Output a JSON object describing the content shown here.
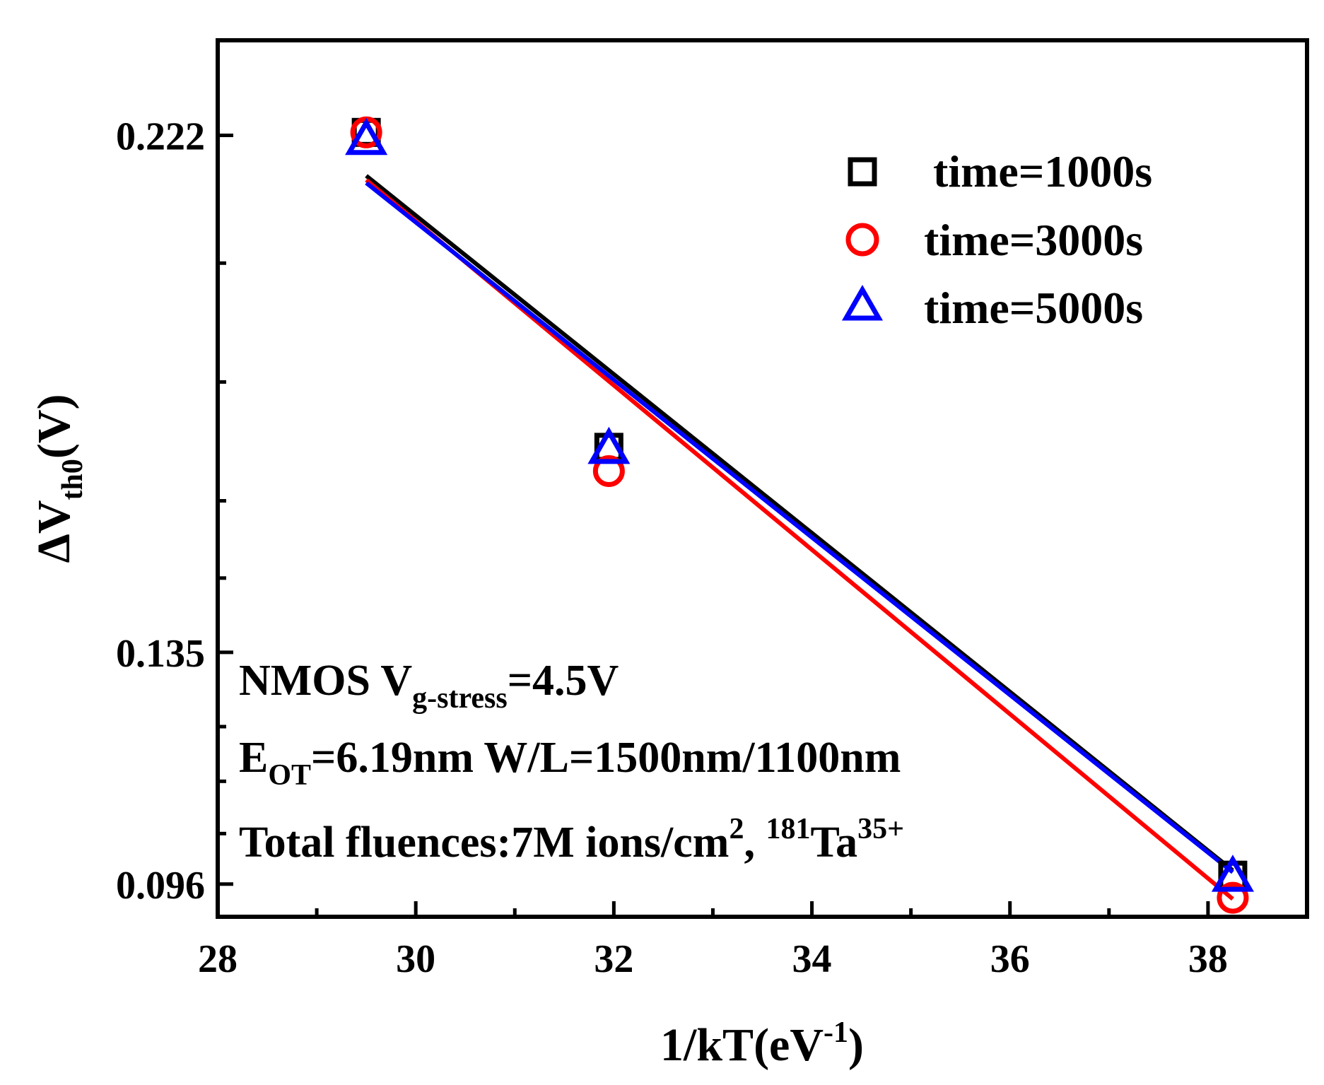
{
  "chart_data": {
    "type": "scatter",
    "xlabel_main": "1/kT",
    "xlabel_unit_prefix": "(eV",
    "xlabel_unit_sup": "-1",
    "xlabel_unit_suffix": ")",
    "ylabel_prefix": "ΔV",
    "ylabel_sub": "th0",
    "ylabel_suffix": "(V)",
    "xlim": [
      28,
      39
    ],
    "ylim": [
      0.0905,
      0.238
    ],
    "xticks": [
      28,
      30,
      32,
      34,
      36,
      38
    ],
    "xtick_labels": [
      "28",
      "30",
      "32",
      "34",
      "36",
      "38"
    ],
    "yticks": [
      0.096,
      0.135,
      0.222
    ],
    "ytick_labels": [
      "0.096",
      "0.135",
      "0.222"
    ],
    "series": [
      {
        "name": "time=1000s",
        "marker": "square",
        "color": "#000000",
        "x": [
          29.5,
          31.95,
          38.25
        ],
        "y": [
          0.2225,
          0.1695,
          0.0975
        ],
        "fit": {
          "x": [
            29.5,
            38.25
          ],
          "y": [
            0.2152,
            0.0983
          ]
        }
      },
      {
        "name": "time=3000s",
        "marker": "circle",
        "color": "#ff0000",
        "x": [
          29.5,
          31.95,
          38.25
        ],
        "y": [
          0.2225,
          0.1655,
          0.0937
        ],
        "fit": {
          "x": [
            29.5,
            38.25
          ],
          "y": [
            0.2145,
            0.0935
          ]
        }
      },
      {
        "name": "time=5000s",
        "marker": "triangle",
        "color": "#0000ff",
        "x": [
          29.5,
          31.95,
          38.25
        ],
        "y": [
          0.2215,
          0.1695,
          0.0975
        ],
        "fit": {
          "x": [
            29.5,
            38.25
          ],
          "y": [
            0.214,
            0.098
          ]
        }
      }
    ],
    "legend_position": "top-right",
    "annotations": {
      "line1": {
        "a": "NMOS  V",
        "sub": "g-stress",
        "b": "=4.5V"
      },
      "line2": {
        "a": "E",
        "sub": "OT",
        "b": "=6.19nm W/L=1500nm/1100nm"
      },
      "line3": {
        "a": "Total fluences:7M ions/cm",
        "sup1": "2",
        "b": ", ",
        "sup2": "181",
        "c": "Ta",
        "sup3": "35+"
      }
    }
  }
}
